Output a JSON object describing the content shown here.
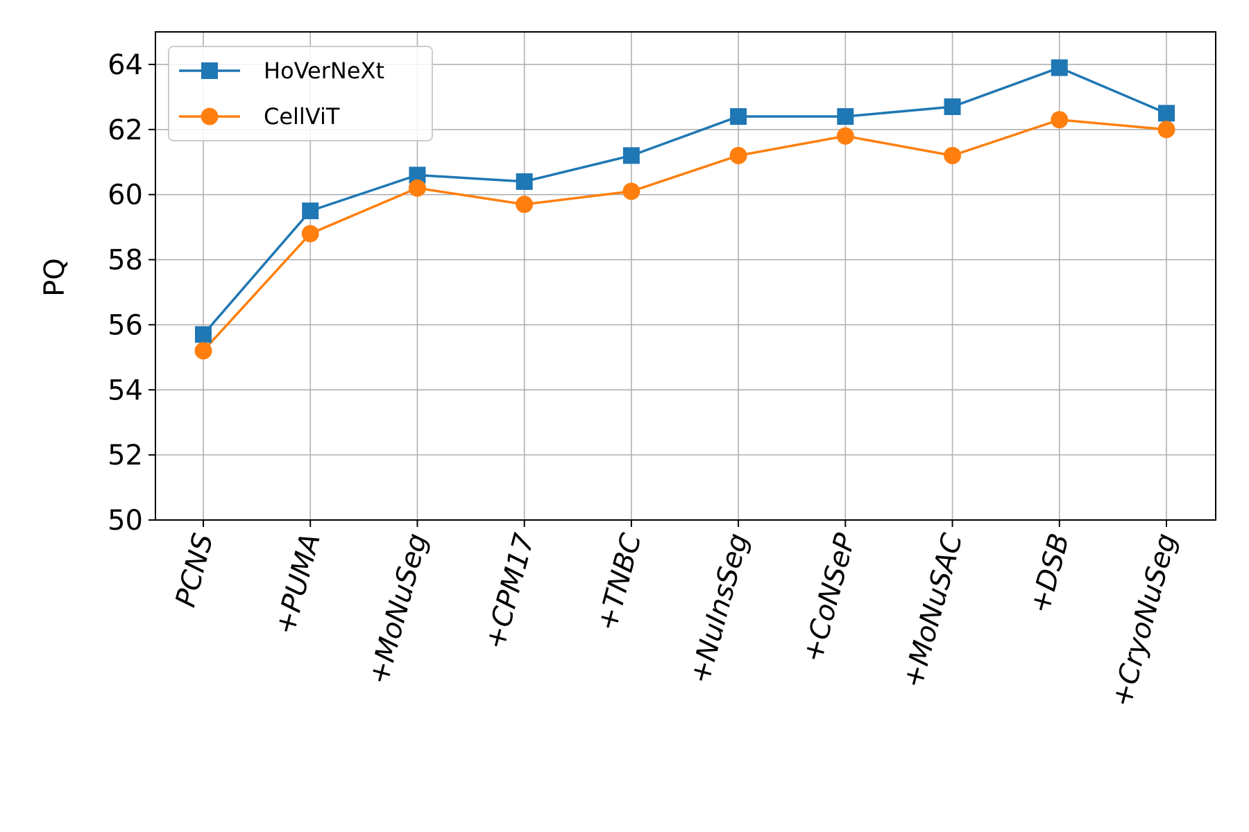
{
  "chart_data": {
    "type": "line",
    "title": "",
    "xlabel": "",
    "ylabel": "PQ",
    "categories": [
      "PCNS",
      "+PUMA",
      "+MoNuSeg",
      "+CPM17",
      "+TNBC",
      "+NuInsSeg",
      "+CoNSeP",
      "+MoNuSAC",
      "+DSB",
      "+CryoNuSeg"
    ],
    "ylim": [
      50,
      65
    ],
    "yticks": [
      50,
      52,
      54,
      56,
      58,
      60,
      62,
      64
    ],
    "grid": true,
    "legend_position": "top-left",
    "series": [
      {
        "name": "HoVerNeXt",
        "color": "#1f77b4",
        "marker": "square",
        "values": [
          55.7,
          59.5,
          60.6,
          60.4,
          61.2,
          62.4,
          62.4,
          62.7,
          63.9,
          62.5
        ]
      },
      {
        "name": "CellViT",
        "color": "#ff7f0e",
        "marker": "circle",
        "values": [
          55.2,
          58.8,
          60.2,
          59.7,
          60.1,
          61.2,
          61.8,
          61.2,
          62.3,
          62.0
        ]
      }
    ]
  }
}
